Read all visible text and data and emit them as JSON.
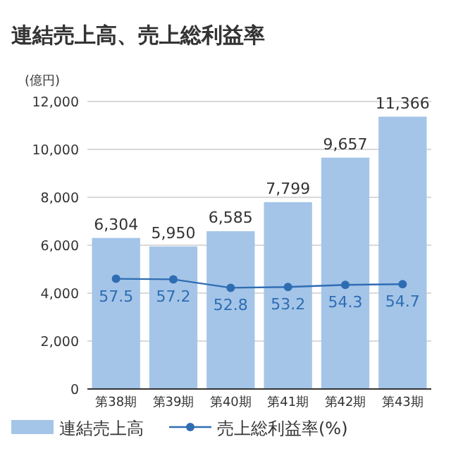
{
  "chart_data": {
    "type": "bar",
    "title": "連結売上高、売上総利益率",
    "ylabel": "(億円)",
    "categories": [
      "第38期",
      "第39期",
      "第40期",
      "第41期",
      "第42期",
      "第43期"
    ],
    "series": [
      {
        "name": "連結売上高",
        "color": "#a4c5e8",
        "values": [
          6304,
          5950,
          6585,
          7799,
          9657,
          11366
        ],
        "value_labels": [
          "6,304",
          "5,950",
          "6,585",
          "7,799",
          "9,657",
          "11,366"
        ]
      },
      {
        "name": "売上総利益率(%)",
        "type": "line",
        "axis": "y2",
        "color": "#2f6db3",
        "marker": "circle",
        "values": [
          57.5,
          57.2,
          52.8,
          53.2,
          54.3,
          54.7
        ],
        "value_labels": [
          "57.5",
          "57.2",
          "52.8",
          "53.2",
          "54.3",
          "54.7"
        ]
      }
    ],
    "ylim": [
      0,
      12000
    ],
    "yticks": [
      0,
      {
        "value": 2000,
        "label": "2,000"
      },
      {
        "value": 4000,
        "label": "4,000"
      },
      {
        "value": 6000,
        "label": "6,000"
      },
      {
        "value": 8000,
        "label": "8,000"
      },
      {
        "value": 10000,
        "label": "10,000"
      },
      {
        "value": 12000,
        "label": "12,000"
      }
    ],
    "y2lim": [
      0,
      150
    ],
    "grid": "y",
    "legend": "bottom"
  }
}
